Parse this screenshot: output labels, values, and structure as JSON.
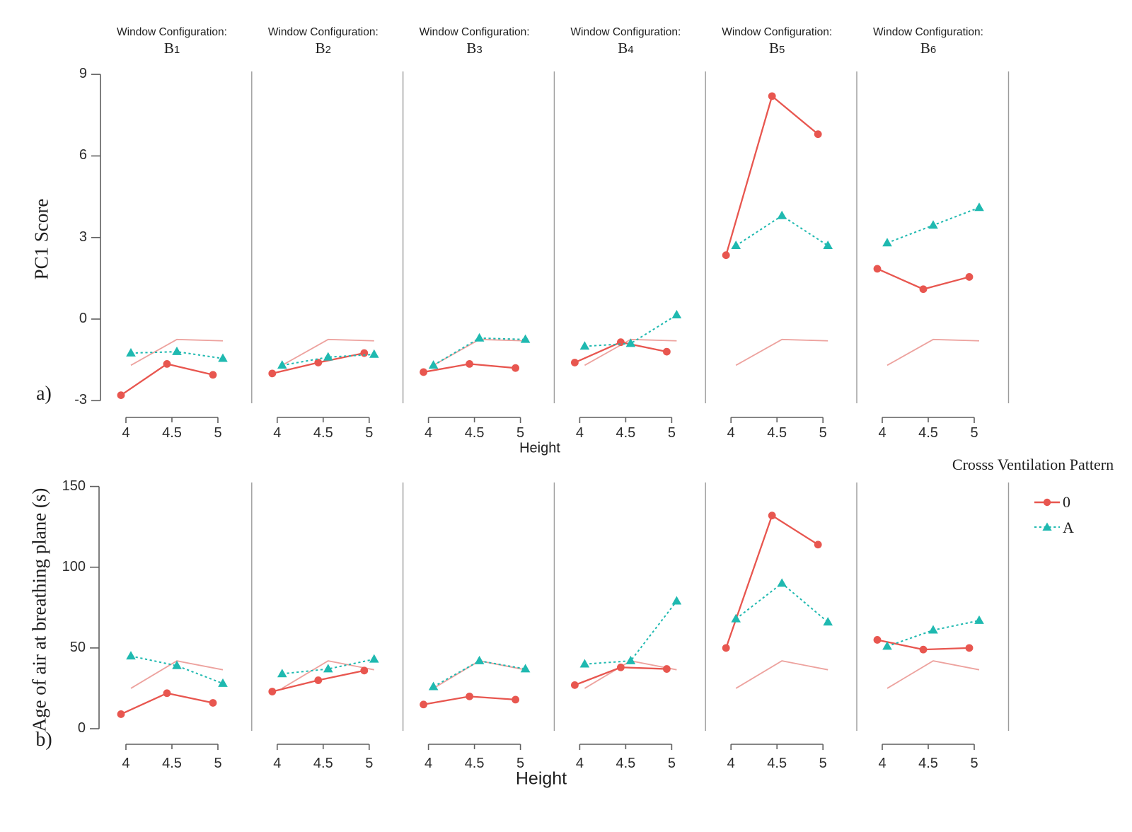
{
  "colors": {
    "series_0": "#E8564F",
    "series_A": "#1FB9B0",
    "reference_line": "#EDA29E",
    "separator": "#9B9B9B",
    "axis": "#5F5F5F",
    "text": "#1F1F1F"
  },
  "facet_header_prefix": "Window Configuration:",
  "legend": {
    "title": "Crosss Ventilation Pattern",
    "entries": [
      {
        "label": "0",
        "series": "0",
        "marker": "solid-line-circle"
      },
      {
        "label": "A",
        "series": "A",
        "marker": "dashed-line-triangle"
      }
    ]
  },
  "chart_data": [
    {
      "type": "line",
      "panel_tag": "a)",
      "ylabel": "PC1 Score",
      "xlabel": "Height",
      "x": [
        4,
        4.5,
        5
      ],
      "xtick_labels": [
        "4",
        "4.5",
        "5"
      ],
      "yticks": [
        9,
        6,
        3,
        0,
        -3
      ],
      "ylim": [
        -3,
        9
      ],
      "facet_prefix": "Window Configuration:",
      "facet_categories": [
        "B1",
        "B2",
        "B3",
        "B4",
        "B5",
        "B6"
      ],
      "facets": [
        {
          "name": "B1",
          "series_0": [
            -2.8,
            -1.65,
            -2.05
          ],
          "series_A": [
            -1.25,
            -1.2,
            -1.45
          ],
          "reference": [
            -1.7,
            -0.75,
            -0.8
          ]
        },
        {
          "name": "B2",
          "series_0": [
            -2.0,
            -1.6,
            -1.25
          ],
          "series_A": [
            -1.7,
            -1.4,
            -1.3
          ],
          "reference": [
            -1.7,
            -0.75,
            -0.8
          ]
        },
        {
          "name": "B3",
          "series_0": [
            -1.95,
            -1.65,
            -1.8
          ],
          "series_A": [
            -1.7,
            -0.7,
            -0.75
          ],
          "reference": [
            -1.7,
            -0.75,
            -0.8
          ]
        },
        {
          "name": "B4",
          "series_0": [
            -1.6,
            -0.85,
            -1.2
          ],
          "series_A": [
            -1.0,
            -0.9,
            0.15
          ],
          "reference": [
            -1.7,
            -0.75,
            -0.8
          ]
        },
        {
          "name": "B5",
          "series_0": [
            2.35,
            8.2,
            6.8
          ],
          "series_A": [
            2.7,
            3.8,
            2.7
          ],
          "reference": [
            -1.7,
            -0.75,
            -0.8
          ]
        },
        {
          "name": "B6",
          "series_0": [
            1.85,
            1.1,
            1.55
          ],
          "series_A": [
            2.8,
            3.45,
            4.1
          ],
          "reference": [
            -1.7,
            -0.75,
            -0.8
          ]
        }
      ]
    },
    {
      "type": "line",
      "panel_tag": "b)",
      "ylabel": "Age of air at breathing plane (s)",
      "xlabel": "Height",
      "x": [
        4,
        4.5,
        5
      ],
      "xtick_labels": [
        "4",
        "4.5",
        "5"
      ],
      "yticks": [
        150,
        100,
        50,
        0
      ],
      "ylim": [
        0,
        150
      ],
      "facet_prefix": "Window Configuration:",
      "facet_categories": [
        "B1",
        "B2",
        "B3",
        "B4",
        "B5",
        "B6"
      ],
      "facets": [
        {
          "name": "B1",
          "series_0": [
            9,
            22,
            16
          ],
          "series_A": [
            45,
            39,
            28
          ],
          "reference": [
            25,
            42,
            36.5
          ]
        },
        {
          "name": "B2",
          "series_0": [
            23,
            30,
            36
          ],
          "series_A": [
            34,
            37,
            43
          ],
          "reference": [
            25,
            42,
            36.5
          ]
        },
        {
          "name": "B3",
          "series_0": [
            15,
            20,
            18
          ],
          "series_A": [
            26,
            42,
            37
          ],
          "reference": [
            25,
            42,
            36.5
          ]
        },
        {
          "name": "B4",
          "series_0": [
            27,
            38,
            37
          ],
          "series_A": [
            40,
            42,
            79
          ],
          "reference": [
            25,
            42,
            36.5
          ]
        },
        {
          "name": "B5",
          "series_0": [
            50,
            132,
            114
          ],
          "series_A": [
            68,
            90,
            66
          ],
          "reference": [
            25,
            42,
            36.5
          ]
        },
        {
          "name": "B6",
          "series_0": [
            55,
            49,
            50
          ],
          "series_A": [
            51,
            61,
            67
          ],
          "reference": [
            25,
            42,
            36.5
          ]
        }
      ]
    }
  ]
}
